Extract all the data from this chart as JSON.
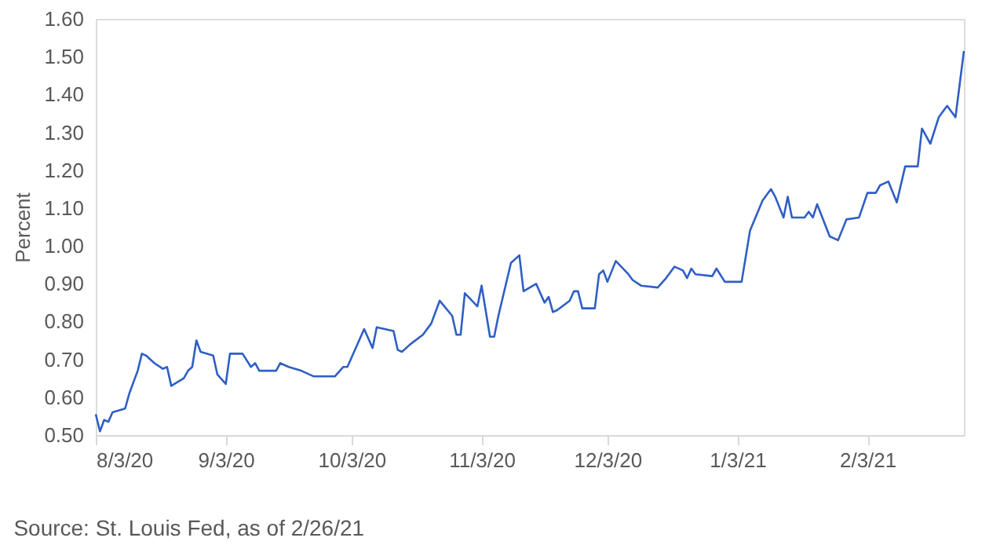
{
  "chart_data": {
    "type": "line",
    "ylabel": "Percent",
    "annotations": [
      "Source: St. Louis Fed, as of 2/26/21"
    ],
    "x": [
      "2020-08-03",
      "2020-08-04",
      "2020-08-05",
      "2020-08-06",
      "2020-08-07",
      "2020-08-10",
      "2020-08-11",
      "2020-08-13",
      "2020-08-14",
      "2020-08-15",
      "2020-08-17",
      "2020-08-19",
      "2020-08-20",
      "2020-08-21",
      "2020-08-24",
      "2020-08-25",
      "2020-08-26",
      "2020-08-27",
      "2020-08-28",
      "2020-08-31",
      "2020-09-01",
      "2020-09-03",
      "2020-09-04",
      "2020-09-07",
      "2020-09-09",
      "2020-09-10",
      "2020-09-11",
      "2020-09-15",
      "2020-09-16",
      "2020-09-18",
      "2020-09-21",
      "2020-09-24",
      "2020-09-29",
      "2020-10-01",
      "2020-10-02",
      "2020-10-06",
      "2020-10-08",
      "2020-10-09",
      "2020-10-13",
      "2020-10-14",
      "2020-10-15",
      "2020-10-17",
      "2020-10-20",
      "2020-10-22",
      "2020-10-24",
      "2020-10-27",
      "2020-10-28",
      "2020-10-29",
      "2020-10-30",
      "2020-11-02",
      "2020-11-03",
      "2020-11-05",
      "2020-11-06",
      "2020-11-07",
      "2020-11-10",
      "2020-11-12",
      "2020-11-13",
      "2020-11-16",
      "2020-11-18",
      "2020-11-19",
      "2020-11-20",
      "2020-11-21",
      "2020-11-24",
      "2020-11-25",
      "2020-11-26",
      "2020-11-27",
      "2020-11-30",
      "2020-12-01",
      "2020-12-02",
      "2020-12-03",
      "2020-12-05",
      "2020-12-08",
      "2020-12-09",
      "2020-12-11",
      "2020-12-15",
      "2020-12-17",
      "2020-12-19",
      "2020-12-21",
      "2020-12-22",
      "2020-12-23",
      "2020-12-24",
      "2020-12-28",
      "2020-12-29",
      "2020-12-31",
      "2021-01-04",
      "2021-01-06",
      "2021-01-09",
      "2021-01-11",
      "2021-01-12",
      "2021-01-14",
      "2021-01-15",
      "2021-01-16",
      "2021-01-19",
      "2021-01-20",
      "2021-01-21",
      "2021-01-22",
      "2021-01-25",
      "2021-01-27",
      "2021-01-29",
      "2021-02-01",
      "2021-02-03",
      "2021-02-05",
      "2021-02-06",
      "2021-02-08",
      "2021-02-10",
      "2021-02-12",
      "2021-02-15",
      "2021-02-16",
      "2021-02-18",
      "2021-02-20",
      "2021-02-22",
      "2021-02-24",
      "2021-02-26"
    ],
    "series": [
      {
        "color": "#2f5fc4",
        "values": [
          0.555,
          0.51,
          0.54,
          0.535,
          0.56,
          0.57,
          0.61,
          0.67,
          0.715,
          0.71,
          0.69,
          0.675,
          0.68,
          0.63,
          0.65,
          0.67,
          0.68,
          0.75,
          0.72,
          0.71,
          0.66,
          0.635,
          0.715,
          0.715,
          0.68,
          0.69,
          0.67,
          0.67,
          0.69,
          0.68,
          0.67,
          0.655,
          0.655,
          0.68,
          0.68,
          0.78,
          0.73,
          0.785,
          0.775,
          0.725,
          0.72,
          0.74,
          0.765,
          0.795,
          0.855,
          0.815,
          0.765,
          0.765,
          0.875,
          0.84,
          0.895,
          0.76,
          0.76,
          0.815,
          0.955,
          0.975,
          0.88,
          0.9,
          0.85,
          0.865,
          0.825,
          0.83,
          0.855,
          0.88,
          0.88,
          0.835,
          0.835,
          0.925,
          0.935,
          0.905,
          0.96,
          0.925,
          0.91,
          0.895,
          0.89,
          0.915,
          0.945,
          0.935,
          0.915,
          0.94,
          0.925,
          0.92,
          0.94,
          0.905,
          0.905,
          1.04,
          1.12,
          1.15,
          1.13,
          1.075,
          1.13,
          1.075,
          1.075,
          1.09,
          1.075,
          1.11,
          1.025,
          1.015,
          1.07,
          1.075,
          1.14,
          1.14,
          1.16,
          1.17,
          1.115,
          1.21,
          1.21,
          1.31,
          1.27,
          1.34,
          1.37,
          1.34,
          1.515
        ]
      }
    ],
    "xlim": [
      "2020-08-03",
      "2021-02-26"
    ],
    "xticks": [
      {
        "value": "2020-08-03",
        "label": "8/3/20"
      },
      {
        "value": "2020-09-03",
        "label": "9/3/20"
      },
      {
        "value": "2020-10-03",
        "label": "10/3/20"
      },
      {
        "value": "2020-11-03",
        "label": "11/3/20"
      },
      {
        "value": "2020-12-03",
        "label": "12/3/20"
      },
      {
        "value": "2021-01-03",
        "label": "1/3/21"
      },
      {
        "value": "2021-02-03",
        "label": "2/3/21"
      }
    ],
    "ylim": [
      0.5,
      1.6
    ],
    "yticks": [
      {
        "value": 0.5,
        "label": "0.50"
      },
      {
        "value": 0.6,
        "label": "0.60"
      },
      {
        "value": 0.7,
        "label": "0.70"
      },
      {
        "value": 0.8,
        "label": "0.80"
      },
      {
        "value": 0.9,
        "label": "0.90"
      },
      {
        "value": 1.0,
        "label": "1.00"
      },
      {
        "value": 1.1,
        "label": "1.10"
      },
      {
        "value": 1.2,
        "label": "1.20"
      },
      {
        "value": 1.3,
        "label": "1.30"
      },
      {
        "value": 1.4,
        "label": "1.40"
      },
      {
        "value": 1.5,
        "label": "1.50"
      },
      {
        "value": 1.6,
        "label": "1.60"
      }
    ],
    "grid": false,
    "marker": "none",
    "line_style": "solid"
  }
}
